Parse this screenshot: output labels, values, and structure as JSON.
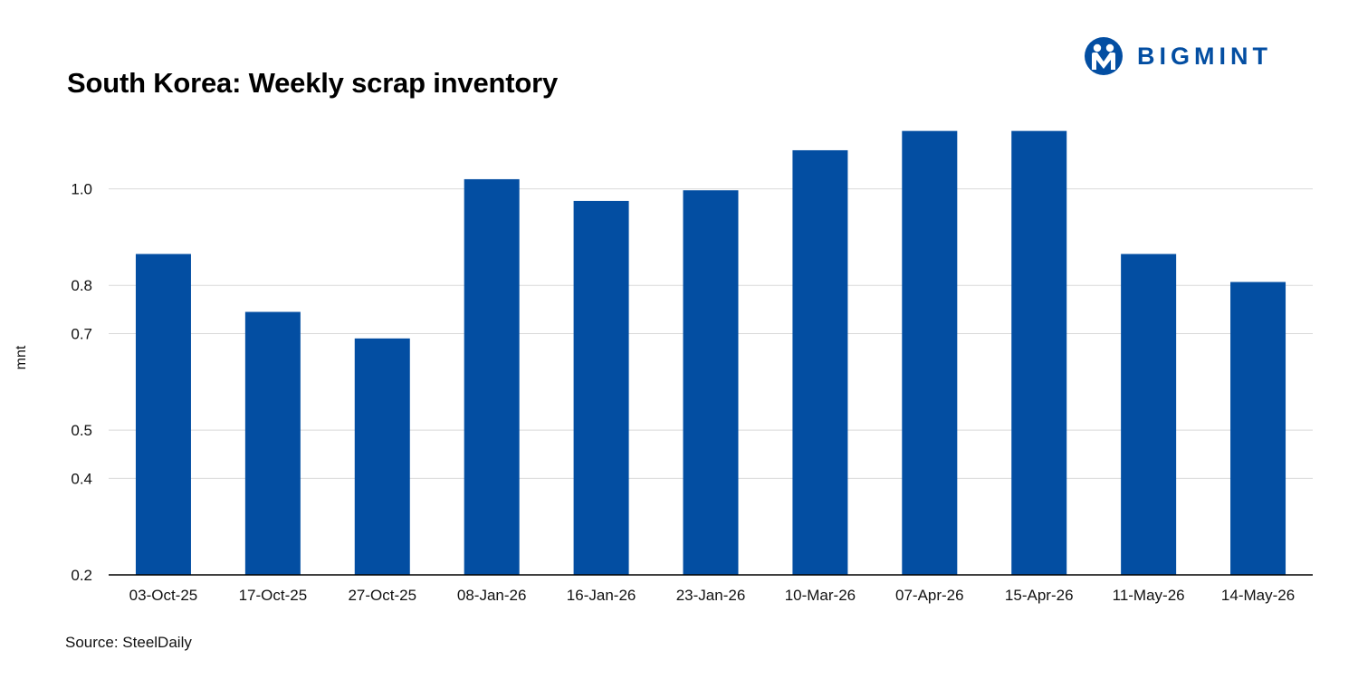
{
  "header": {
    "title": "South Korea: Weekly scrap inventory",
    "brand_name": "BIGMINT",
    "brand_icon": "bigmint-logo-icon"
  },
  "footer": {
    "source": "Source: SteelDaily"
  },
  "colors": {
    "bar": "#034ea2",
    "gridline": "#d9d9d9",
    "axis": "#000000",
    "brand": "#034ea2"
  },
  "chart_data": {
    "type": "bar",
    "title": "South Korea: Weekly scrap inventory",
    "xlabel": "",
    "ylabel": "mnt",
    "categories": [
      "03-Oct-25",
      "17-Oct-25",
      "27-Oct-25",
      "08-Jan-26",
      "16-Jan-26",
      "23-Jan-26",
      "10-Mar-26",
      "07-Apr-26",
      "15-Apr-26",
      "11-May-26",
      "14-May-26"
    ],
    "values": [
      0.865,
      0.745,
      0.69,
      1.02,
      0.975,
      0.997,
      1.08,
      1.12,
      1.12,
      0.865,
      0.807
    ],
    "ylim": [
      0.2,
      1.2
    ],
    "yticks": [
      0.2,
      0.4,
      0.5,
      0.7,
      0.8,
      1.0
    ],
    "ytick_labels": [
      "0.2",
      "0.4",
      "0.5",
      "0.7",
      "0.8",
      "1.0"
    ],
    "grid": true,
    "legend": "none"
  }
}
